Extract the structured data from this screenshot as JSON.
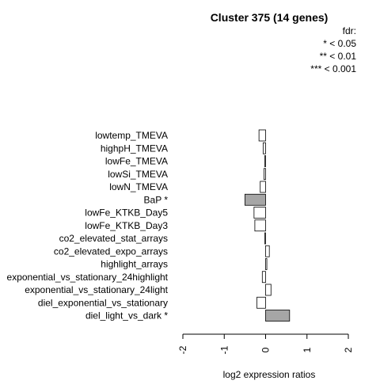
{
  "chart_data": {
    "type": "bar",
    "orientation": "horizontal",
    "title": "Cluster 375 (14 genes)",
    "xlabel": "log2 expression ratios",
    "ylabel": "",
    "xlim": [
      -2,
      2
    ],
    "xticks": [
      "-2",
      "-1",
      "0",
      "1",
      "2"
    ],
    "xtick_values": [
      -2,
      -1,
      0,
      1,
      2
    ],
    "grid": false,
    "legend": {
      "placement": "top-right",
      "title": "fdr:",
      "entries": [
        "* < 0.05",
        "** < 0.01",
        "*** < 0.001"
      ]
    },
    "categories": [
      "lowtemp_TMEVA",
      "highpH_TMEVA",
      "lowFe_TMEVA",
      "lowSi_TMEVA",
      "lowN_TMEVA",
      "BaP *",
      "lowFe_KTKB_Day5",
      "lowFe_KTKB_Day3",
      "co2_elevated_stat_arrays",
      "co2_elevated_expo_arrays",
      "highlight_arrays",
      "exponential_vs_stationary_24highlight",
      "exponential_vs_stationary_24light",
      "diel_exponential_vs_stationary",
      "diel_light_vs_dark *"
    ],
    "values": [
      -0.16,
      -0.06,
      -0.02,
      -0.04,
      -0.13,
      -0.5,
      -0.28,
      -0.26,
      -0.02,
      0.09,
      0.03,
      -0.08,
      0.13,
      -0.21,
      0.58
    ],
    "significant": [
      false,
      false,
      false,
      false,
      false,
      true,
      false,
      false,
      false,
      false,
      false,
      false,
      false,
      false,
      true
    ],
    "colors": {
      "significant": "#a6a6a6",
      "normal": "#ffffff",
      "stroke": "#000000"
    }
  }
}
